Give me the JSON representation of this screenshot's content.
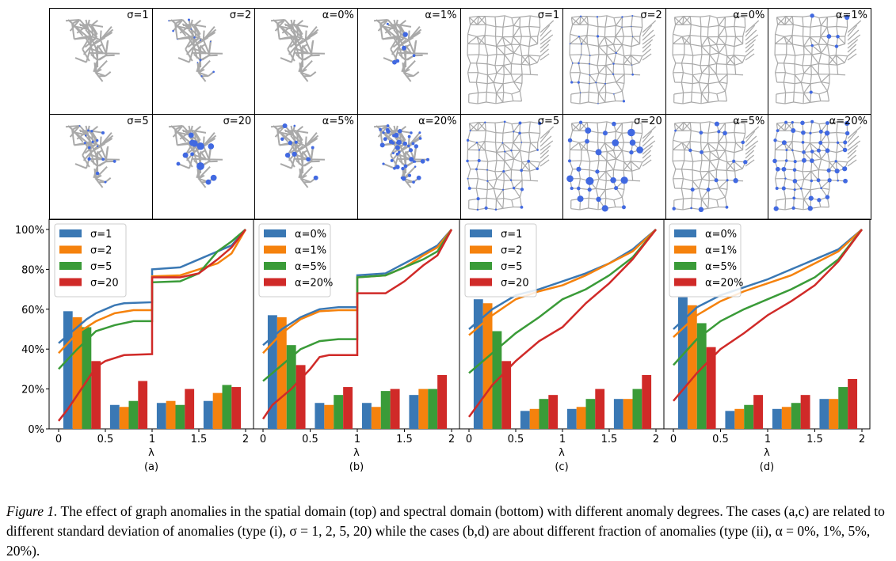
{
  "spatial_panels": {
    "titles_row1": [
      "σ=1",
      "σ=2",
      "α=0%",
      "α=1%",
      "σ=1",
      "σ=2",
      "α=0%",
      "α=1%"
    ],
    "titles_row2": [
      "σ=5",
      "σ=20",
      "α=5%",
      "α=20%",
      "σ=5",
      "σ=20",
      "α=5%",
      "α=20%"
    ],
    "node_color": "#4169e1",
    "edge_color": "#a9a9a9"
  },
  "chart_data": [
    {
      "type": "bar+line",
      "label": "(a)",
      "xlabel": "λ",
      "ylabel": "",
      "xlim": [
        0,
        2
      ],
      "ylim": [
        0,
        100
      ],
      "xticks": [
        "0",
        "0.5",
        "1",
        "1.5",
        "2"
      ],
      "yticks": [
        "0%",
        "20%",
        "40%",
        "60%",
        "80%",
        "100%"
      ],
      "legend": "top-left",
      "categories": [
        0.25,
        0.75,
        1.25,
        1.75
      ],
      "series": [
        {
          "name": "σ=1",
          "color": "#3a78b4",
          "bars": [
            59,
            12,
            13,
            14
          ],
          "line": [
            [
              0,
              43
            ],
            [
              0.1,
              47
            ],
            [
              0.2,
              51
            ],
            [
              0.3,
              55
            ],
            [
              0.4,
              58
            ],
            [
              0.5,
              60
            ],
            [
              0.6,
              62
            ],
            [
              0.7,
              63
            ],
            [
              1,
              63.5
            ],
            [
              1,
              80
            ],
            [
              1.3,
              81
            ],
            [
              1.5,
              85
            ],
            [
              1.7,
              89
            ],
            [
              1.85,
              92
            ],
            [
              2,
              100
            ]
          ]
        },
        {
          "name": "σ=2",
          "color": "#f5820d",
          "bars": [
            56,
            11,
            14,
            18
          ],
          "line": [
            [
              0,
              38
            ],
            [
              0.2,
              48
            ],
            [
              0.4,
              54
            ],
            [
              0.6,
              58
            ],
            [
              0.8,
              59.5
            ],
            [
              1,
              59.5
            ],
            [
              1,
              76.5
            ],
            [
              1.3,
              77
            ],
            [
              1.5,
              80
            ],
            [
              1.7,
              83
            ],
            [
              1.85,
              88
            ],
            [
              2,
              100
            ]
          ]
        },
        {
          "name": "σ=5",
          "color": "#3a9b38",
          "bars": [
            51,
            14,
            12,
            22
          ],
          "line": [
            [
              0,
              30
            ],
            [
              0.2,
              40
            ],
            [
              0.4,
              49
            ],
            [
              0.6,
              52
            ],
            [
              0.8,
              54
            ],
            [
              1,
              54
            ],
            [
              1,
              73.5
            ],
            [
              1.3,
              74
            ],
            [
              1.5,
              78
            ],
            [
              1.7,
              89
            ],
            [
              1.85,
              94
            ],
            [
              2,
              100
            ]
          ]
        },
        {
          "name": "σ=20",
          "color": "#d02a28",
          "bars": [
            34,
            24,
            20,
            21
          ],
          "line": [
            [
              0,
              4
            ],
            [
              0.1,
              10
            ],
            [
              0.2,
              17
            ],
            [
              0.3,
              24
            ],
            [
              0.4,
              31
            ],
            [
              0.5,
              34
            ],
            [
              0.7,
              37
            ],
            [
              1,
              37.5
            ],
            [
              1,
              76
            ],
            [
              1.3,
              76
            ],
            [
              1.5,
              78
            ],
            [
              1.7,
              85
            ],
            [
              1.85,
              91
            ],
            [
              2,
              100
            ]
          ]
        }
      ]
    },
    {
      "type": "bar+line",
      "label": "(b)",
      "xlabel": "λ",
      "ylabel": "",
      "xlim": [
        0,
        2
      ],
      "ylim": [
        0,
        100
      ],
      "xticks": [
        "0",
        "0.5",
        "1",
        "1.5",
        "2"
      ],
      "yticks": [],
      "legend": "top-left",
      "categories": [
        0.25,
        0.75,
        1.25,
        1.75
      ],
      "series": [
        {
          "name": "α=0%",
          "color": "#3a78b4",
          "bars": [
            57,
            13,
            13,
            17
          ],
          "line": [
            [
              0,
              42
            ],
            [
              0.2,
              50
            ],
            [
              0.4,
              56
            ],
            [
              0.6,
              60
            ],
            [
              0.8,
              61
            ],
            [
              1,
              61
            ],
            [
              1,
              77
            ],
            [
              1.3,
              78
            ],
            [
              1.5,
              83
            ],
            [
              1.7,
              88
            ],
            [
              1.85,
              92
            ],
            [
              2,
              100
            ]
          ]
        },
        {
          "name": "α=1%",
          "color": "#f5820d",
          "bars": [
            56,
            12,
            11,
            20
          ],
          "line": [
            [
              0,
              38
            ],
            [
              0.2,
              48
            ],
            [
              0.4,
              55
            ],
            [
              0.6,
              59
            ],
            [
              0.8,
              59.5
            ],
            [
              1,
              59.5
            ],
            [
              1,
              76
            ],
            [
              1.3,
              77
            ],
            [
              1.5,
              81
            ],
            [
              1.7,
              87
            ],
            [
              1.85,
              91
            ],
            [
              2,
              100
            ]
          ]
        },
        {
          "name": "α=5%",
          "color": "#3a9b38",
          "bars": [
            42,
            17,
            19,
            20
          ],
          "line": [
            [
              0,
              24
            ],
            [
              0.2,
              32
            ],
            [
              0.4,
              40
            ],
            [
              0.6,
              44
            ],
            [
              0.8,
              45
            ],
            [
              1,
              45
            ],
            [
              1,
              76
            ],
            [
              1.3,
              77
            ],
            [
              1.5,
              81
            ],
            [
              1.7,
              85
            ],
            [
              1.85,
              89
            ],
            [
              2,
              100
            ]
          ]
        },
        {
          "name": "α=20%",
          "color": "#d02a28",
          "bars": [
            32,
            21,
            20,
            27
          ],
          "line": [
            [
              0,
              5
            ],
            [
              0.1,
              12
            ],
            [
              0.3,
              20
            ],
            [
              0.5,
              30
            ],
            [
              0.6,
              36
            ],
            [
              0.7,
              37
            ],
            [
              1,
              37
            ],
            [
              1,
              68
            ],
            [
              1.3,
              68
            ],
            [
              1.5,
              74
            ],
            [
              1.7,
              82
            ],
            [
              1.85,
              87
            ],
            [
              2,
              100
            ]
          ]
        }
      ]
    },
    {
      "type": "bar+line",
      "label": "(c)",
      "xlabel": "λ",
      "ylabel": "",
      "xlim": [
        0,
        2
      ],
      "ylim": [
        0,
        100
      ],
      "xticks": [
        "0",
        "0.5",
        "1",
        "1.5",
        "2"
      ],
      "yticks": [],
      "legend": "top-left",
      "categories": [
        0.25,
        0.75,
        1.25,
        1.75
      ],
      "series": [
        {
          "name": "σ=1",
          "color": "#3a78b4",
          "bars": [
            65,
            9,
            10,
            15
          ],
          "line": [
            [
              0,
              50
            ],
            [
              0.25,
              60
            ],
            [
              0.5,
              67
            ],
            [
              0.75,
              70
            ],
            [
              1,
              74
            ],
            [
              1.25,
              78
            ],
            [
              1.5,
              83
            ],
            [
              1.75,
              90
            ],
            [
              2,
              100
            ]
          ]
        },
        {
          "name": "σ=2",
          "color": "#f5820d",
          "bars": [
            63,
            10,
            11,
            15
          ],
          "line": [
            [
              0,
              47
            ],
            [
              0.25,
              57
            ],
            [
              0.5,
              65
            ],
            [
              0.75,
              69
            ],
            [
              1,
              72
            ],
            [
              1.25,
              77
            ],
            [
              1.5,
              83
            ],
            [
              1.75,
              89
            ],
            [
              2,
              100
            ]
          ]
        },
        {
          "name": "σ=5",
          "color": "#3a9b38",
          "bars": [
            49,
            15,
            15,
            20
          ],
          "line": [
            [
              0,
              28
            ],
            [
              0.25,
              38
            ],
            [
              0.5,
              48
            ],
            [
              0.75,
              56
            ],
            [
              1,
              65
            ],
            [
              1.25,
              70
            ],
            [
              1.5,
              77
            ],
            [
              1.75,
              86
            ],
            [
              2,
              100
            ]
          ]
        },
        {
          "name": "σ=20",
          "color": "#d02a28",
          "bars": [
            34,
            17,
            20,
            27
          ],
          "line": [
            [
              0,
              6
            ],
            [
              0.25,
              22
            ],
            [
              0.5,
              34
            ],
            [
              0.75,
              44
            ],
            [
              1,
              51
            ],
            [
              1.25,
              63
            ],
            [
              1.5,
              73
            ],
            [
              1.75,
              85
            ],
            [
              2,
              100
            ]
          ]
        }
      ]
    },
    {
      "type": "bar+line",
      "label": "(d)",
      "xlabel": "λ",
      "ylabel": "",
      "xlim": [
        0,
        2
      ],
      "ylim": [
        0,
        100
      ],
      "xticks": [
        "0",
        "0.5",
        "1",
        "1.5",
        "2"
      ],
      "yticks": [],
      "legend": "top-left",
      "categories": [
        0.25,
        0.75,
        1.25,
        1.75
      ],
      "series": [
        {
          "name": "α=0%",
          "color": "#3a78b4",
          "bars": [
            66,
            9,
            10,
            15
          ],
          "line": [
            [
              0,
              50
            ],
            [
              0.25,
              61
            ],
            [
              0.5,
              67
            ],
            [
              0.75,
              71
            ],
            [
              1,
              75
            ],
            [
              1.25,
              80
            ],
            [
              1.5,
              85
            ],
            [
              1.75,
              90
            ],
            [
              2,
              100
            ]
          ]
        },
        {
          "name": "α=1%",
          "color": "#f5820d",
          "bars": [
            62,
            10,
            11,
            15
          ],
          "line": [
            [
              0,
              46
            ],
            [
              0.25,
              57
            ],
            [
              0.5,
              64
            ],
            [
              0.75,
              69
            ],
            [
              1,
              73
            ],
            [
              1.25,
              77
            ],
            [
              1.5,
              83
            ],
            [
              1.75,
              89
            ],
            [
              2,
              100
            ]
          ]
        },
        {
          "name": "α=5%",
          "color": "#3a9b38",
          "bars": [
            53,
            12,
            13,
            21
          ],
          "line": [
            [
              0,
              32
            ],
            [
              0.25,
              45
            ],
            [
              0.5,
              54
            ],
            [
              0.75,
              60
            ],
            [
              1,
              65
            ],
            [
              1.25,
              70
            ],
            [
              1.5,
              76
            ],
            [
              1.75,
              85
            ],
            [
              2,
              100
            ]
          ]
        },
        {
          "name": "α=20%",
          "color": "#d02a28",
          "bars": [
            41,
            17,
            17,
            25
          ],
          "line": [
            [
              0,
              14
            ],
            [
              0.25,
              28
            ],
            [
              0.5,
              40
            ],
            [
              0.75,
              48
            ],
            [
              1,
              57
            ],
            [
              1.25,
              64
            ],
            [
              1.5,
              72
            ],
            [
              1.75,
              84
            ],
            [
              2,
              100
            ]
          ]
        }
      ]
    }
  ],
  "caption": {
    "label": "Figure 1.",
    "text": " The effect of graph anomalies in the spatial domain (top) and spectral domain (bottom) with different anomaly degrees. The cases (a,c) are related to different standard deviation of anomalies (type (i), σ = 1, 2, 5, 20) while the cases (b,d) are about different fraction of anomalies (type (ii), α = 0%, 1%, 5%, 20%)."
  }
}
